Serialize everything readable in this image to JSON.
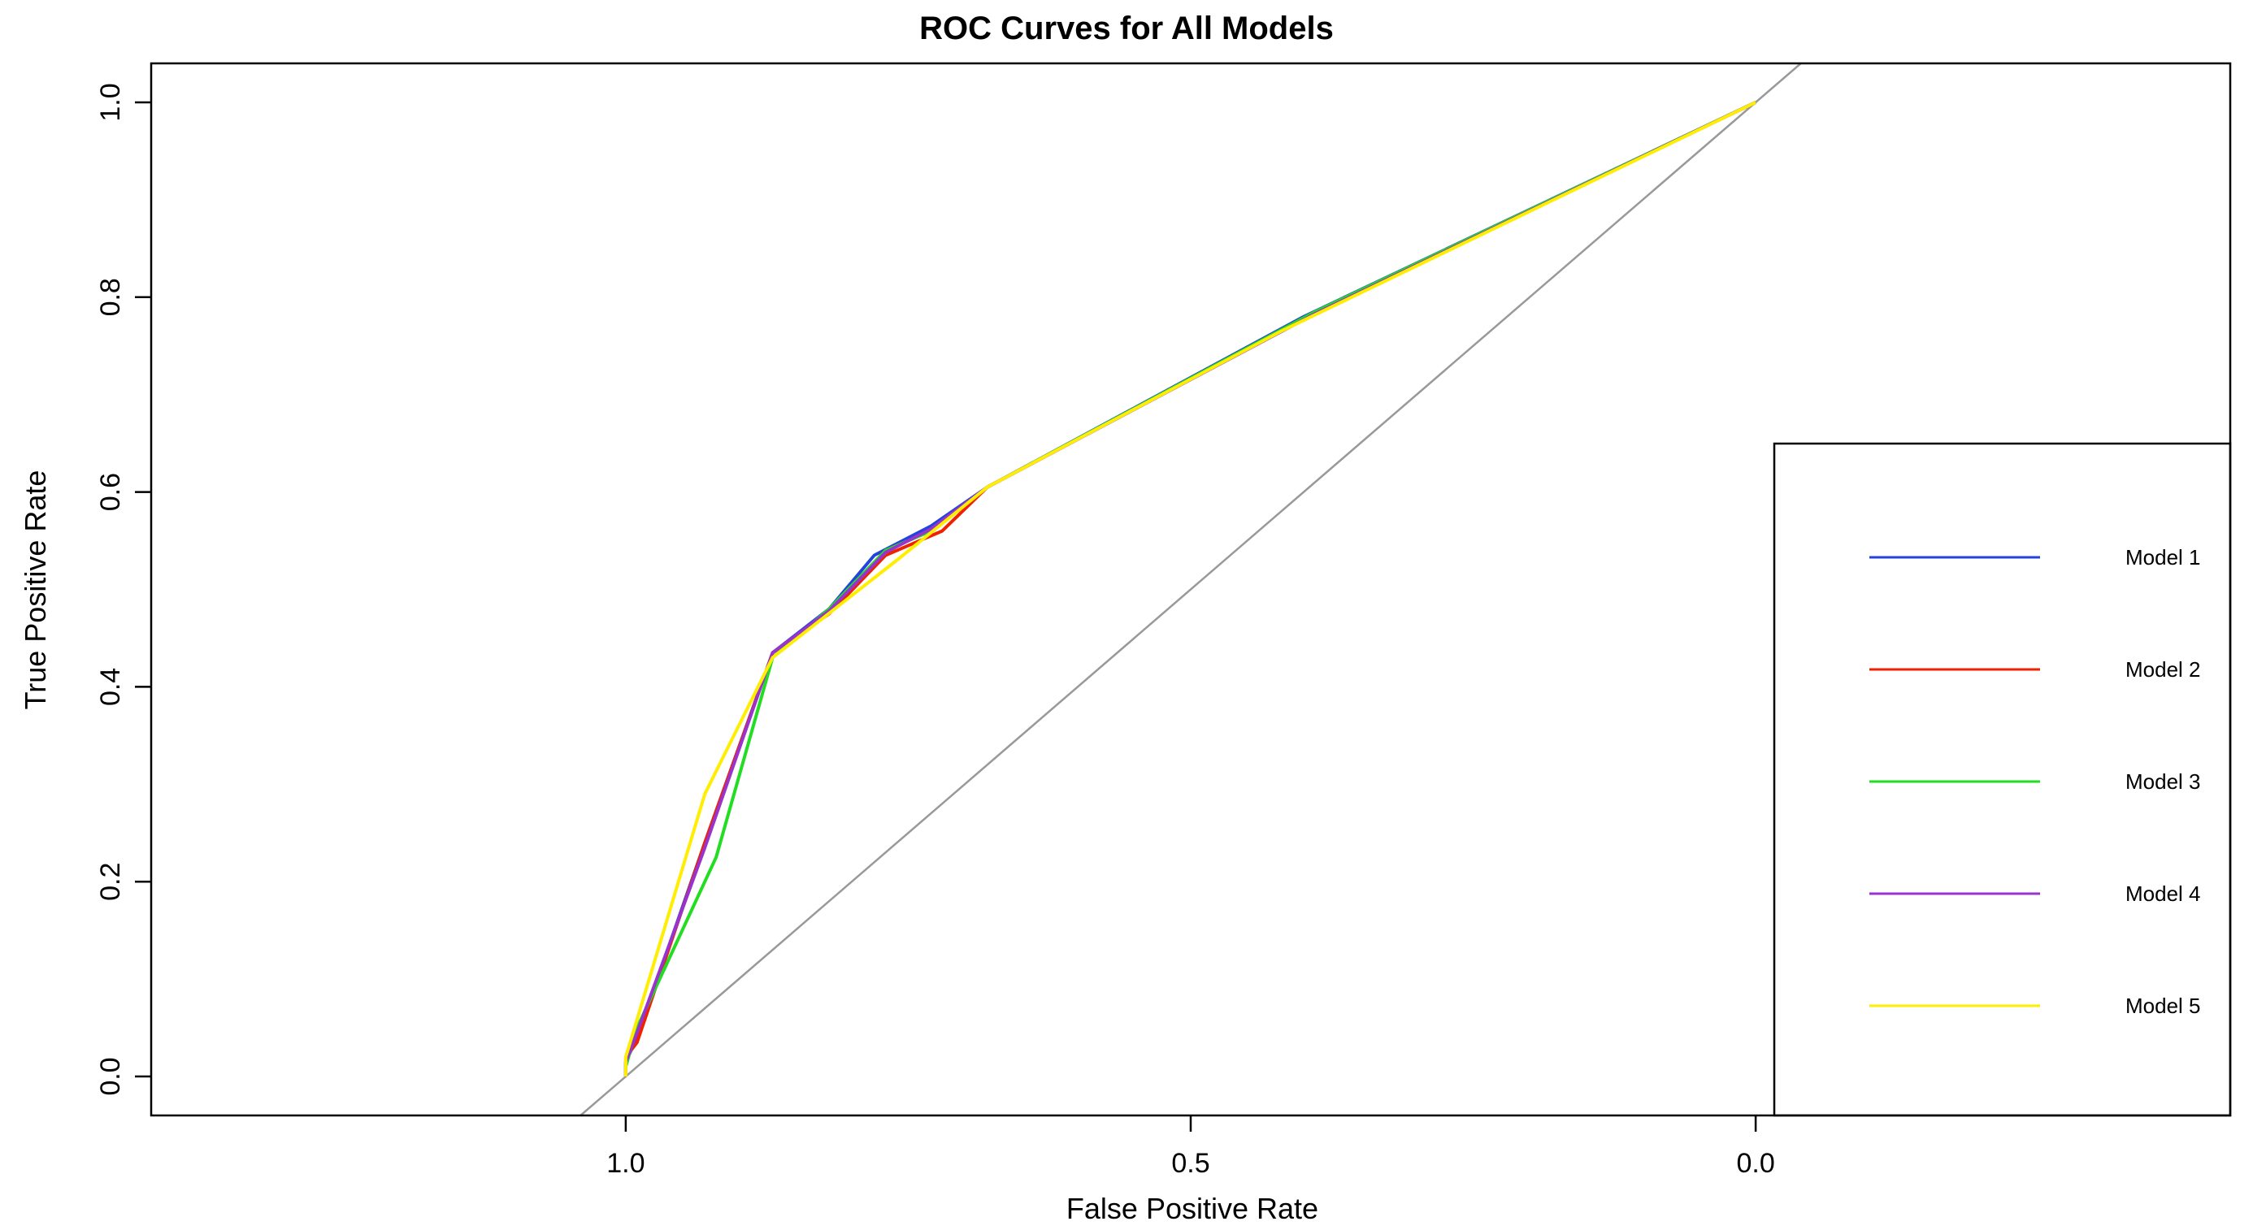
{
  "chart_data": {
    "type": "line",
    "title": "ROC Curves for All Models",
    "xlabel": "False Positive Rate",
    "ylabel": "True Positive Rate",
    "x_axis_reversed": true,
    "xlim": [
      1.42,
      -0.42
    ],
    "ylim": [
      -0.04,
      1.04
    ],
    "x_ticks": [
      1.0,
      0.5,
      0.0
    ],
    "x_tick_labels": [
      "1.0",
      "0.5",
      "0.0"
    ],
    "y_ticks": [
      0.0,
      0.2,
      0.4,
      0.6,
      0.8,
      1.0
    ],
    "y_tick_labels": [
      "0.0",
      "0.2",
      "0.4",
      "0.6",
      "0.8",
      "1.0"
    ],
    "reference_line": {
      "from": [
        1.0,
        0.0
      ],
      "to": [
        0.0,
        1.0
      ],
      "color": "#999999"
    },
    "legend": {
      "placement": "bottom-right",
      "entries": [
        "Model 1",
        "Model 2",
        "Model 3",
        "Model 4",
        "Model 5"
      ]
    },
    "series": [
      {
        "name": "Model 1",
        "color": "#2244dd",
        "x": [
          1.0,
          1.0,
          0.99,
          0.93,
          0.87,
          0.82,
          0.78,
          0.73,
          0.68,
          0.4,
          0.0
        ],
        "y": [
          0.0,
          0.015,
          0.04,
          0.24,
          0.435,
          0.48,
          0.535,
          0.565,
          0.605,
          0.78,
          1.0
        ]
      },
      {
        "name": "Model 2",
        "color": "#ee2200",
        "x": [
          1.0,
          1.0,
          0.99,
          0.93,
          0.87,
          0.82,
          0.77,
          0.72,
          0.68,
          0.38,
          0.0
        ],
        "y": [
          0.0,
          0.02,
          0.035,
          0.24,
          0.435,
          0.475,
          0.535,
          0.56,
          0.605,
          0.79,
          1.0
        ]
      },
      {
        "name": "Model 3",
        "color": "#22dd22",
        "x": [
          1.0,
          1.0,
          0.99,
          0.92,
          0.87,
          0.82,
          0.77,
          0.73,
          0.68,
          0.39,
          0.0
        ],
        "y": [
          0.0,
          0.01,
          0.05,
          0.225,
          0.43,
          0.48,
          0.54,
          0.56,
          0.605,
          0.785,
          1.0
        ]
      },
      {
        "name": "Model 4",
        "color": "#9933cc",
        "x": [
          1.0,
          1.0,
          0.99,
          0.93,
          0.87,
          0.82,
          0.77,
          0.73,
          0.68,
          0.39,
          0.0
        ],
        "y": [
          0.0,
          0.015,
          0.045,
          0.235,
          0.435,
          0.478,
          0.538,
          0.562,
          0.605,
          0.783,
          1.0
        ]
      },
      {
        "name": "Model 5",
        "color": "#ffee00",
        "x": [
          1.0,
          1.0,
          0.93,
          0.87,
          0.76,
          0.68,
          0.42,
          0.0
        ],
        "y": [
          0.0,
          0.02,
          0.29,
          0.43,
          0.53,
          0.605,
          0.765,
          1.0
        ]
      }
    ]
  }
}
